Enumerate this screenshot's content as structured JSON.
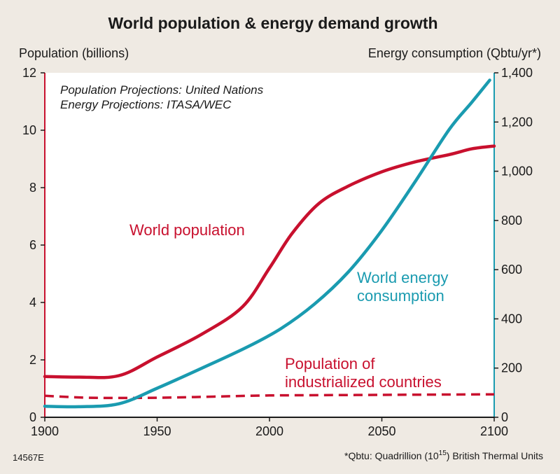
{
  "chart_data": {
    "type": "line",
    "title": "World population & energy demand growth",
    "ylabel_left": "Population (billions)",
    "ylabel_right": "Energy consumption (Qbtu/yr*)",
    "xlim": [
      1900,
      2100
    ],
    "ylim_left": [
      0,
      12
    ],
    "ylim_right": [
      0,
      1400
    ],
    "x_ticks": [
      "1900",
      "1950",
      "2000",
      "2050",
      "2100"
    ],
    "y_left_ticks": [
      "0",
      "2",
      "4",
      "6",
      "8",
      "10",
      "12"
    ],
    "y_right_ticks": [
      "0",
      "200",
      "400",
      "600",
      "800",
      "1,000",
      "1,200",
      "1,400"
    ],
    "notes": [
      "Population Projections: United Nations",
      "Energy Projections: ITASA/WEC"
    ],
    "series": [
      {
        "name": "World population",
        "label_lines": [
          "World population"
        ],
        "axis": "left",
        "color": "#c8102e",
        "style": "solid",
        "points": [
          [
            1900,
            1.42
          ],
          [
            1915,
            1.4
          ],
          [
            1933,
            1.45
          ],
          [
            1950,
            2.1
          ],
          [
            1970,
            2.9
          ],
          [
            1988,
            3.85
          ],
          [
            2000,
            5.2
          ],
          [
            2010,
            6.4
          ],
          [
            2022,
            7.45
          ],
          [
            2035,
            8.05
          ],
          [
            2050,
            8.55
          ],
          [
            2065,
            8.9
          ],
          [
            2080,
            9.15
          ],
          [
            2090,
            9.35
          ],
          [
            2100,
            9.45
          ]
        ]
      },
      {
        "name": "World energy consumption",
        "label_lines": [
          "World energy",
          "consumption"
        ],
        "axis": "right",
        "color": "#1a9bb0",
        "style": "solid",
        "points": [
          [
            1900,
            45
          ],
          [
            1915,
            43
          ],
          [
            1933,
            55
          ],
          [
            1950,
            118
          ],
          [
            1970,
            200
          ],
          [
            1990,
            285
          ],
          [
            2005,
            360
          ],
          [
            2020,
            460
          ],
          [
            2035,
            590
          ],
          [
            2050,
            760
          ],
          [
            2065,
            960
          ],
          [
            2080,
            1170
          ],
          [
            2090,
            1280
          ],
          [
            2098,
            1370
          ]
        ]
      },
      {
        "name": "Population of industrialized countries",
        "label_lines": [
          "Population of",
          "industrialized countries"
        ],
        "axis": "left",
        "color": "#c8102e",
        "style": "dashed",
        "points": [
          [
            1900,
            0.75
          ],
          [
            1920,
            0.68
          ],
          [
            1950,
            0.68
          ],
          [
            1975,
            0.72
          ],
          [
            2000,
            0.76
          ],
          [
            2050,
            0.78
          ],
          [
            2100,
            0.8
          ]
        ]
      }
    ]
  },
  "footer": {
    "code": "14567E",
    "footnote": "*Qbtu: Quadrillion (10",
    "footnote_sup": "15",
    "footnote_end": ") British Thermal Units"
  },
  "colors": {
    "background": "#efeae3",
    "plot_bg": "#ffffff",
    "population": "#c8102e",
    "energy": "#1a9bb0"
  }
}
